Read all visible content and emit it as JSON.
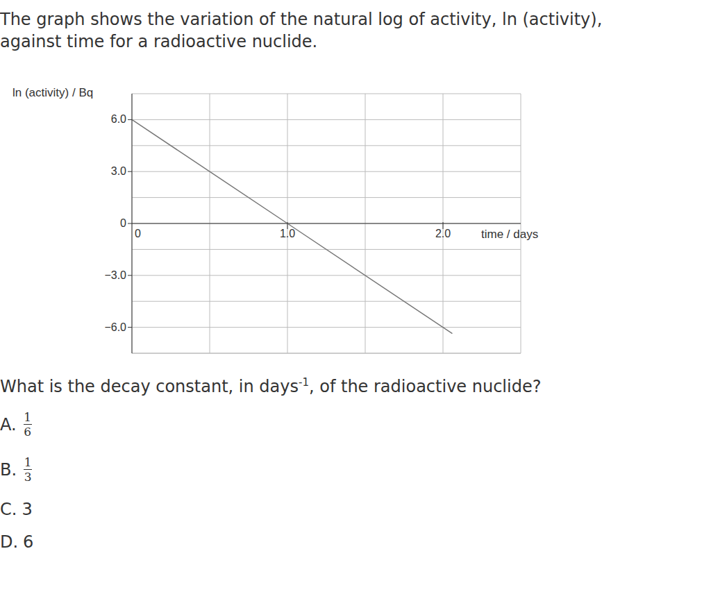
{
  "intro": [
    "The graph shows the variation of the natural log of activity, ln (activity),",
    "against time for a radioactive nuclide."
  ],
  "chart_data": {
    "type": "line",
    "y_label": "ln (activity) / Bq",
    "x_label": "time / days",
    "x": [
      0,
      1.0,
      2.06
    ],
    "values": [
      6.0,
      0,
      -6.36
    ],
    "color": "#777777",
    "xlim": [
      0,
      2.5
    ],
    "xticks": [
      0,
      {
        "value": 0.5,
        "label": null
      },
      {
        "value": 1.0,
        "label": "1.0"
      },
      {
        "value": 1.5,
        "label": null
      },
      {
        "value": 2.0,
        "label": "2.0"
      },
      {
        "value": 2.5,
        "label": null
      }
    ],
    "ylim": [
      -7.5,
      7.5
    ],
    "yticks": [
      {
        "value": -7.5,
        "label": null
      },
      {
        "value": -6.0,
        "label": "−6.0"
      },
      {
        "value": -4.5,
        "label": null
      },
      {
        "value": -3.0,
        "label": "−3.0"
      },
      {
        "value": -1.5,
        "label": null
      },
      0,
      {
        "value": 1.5,
        "label": null
      },
      {
        "value": 3.0,
        "label": "3.0"
      },
      {
        "value": 4.5,
        "label": null
      },
      {
        "value": 6.0,
        "label": "6.0"
      },
      {
        "value": 7.5,
        "label": null
      }
    ],
    "grid": true
  },
  "question": {
    "before": "What is the decay constant, in days",
    "superscript": "-1",
    "after": ", of the radioactive nuclide?"
  },
  "options": [
    {
      "letter": "A.",
      "numerator": 1,
      "denominator": 6
    },
    {
      "letter": "B.",
      "numerator": 1,
      "denominator": 3
    },
    {
      "letter": "C.",
      "value": 3
    },
    {
      "letter": "D.",
      "value": 6
    }
  ]
}
